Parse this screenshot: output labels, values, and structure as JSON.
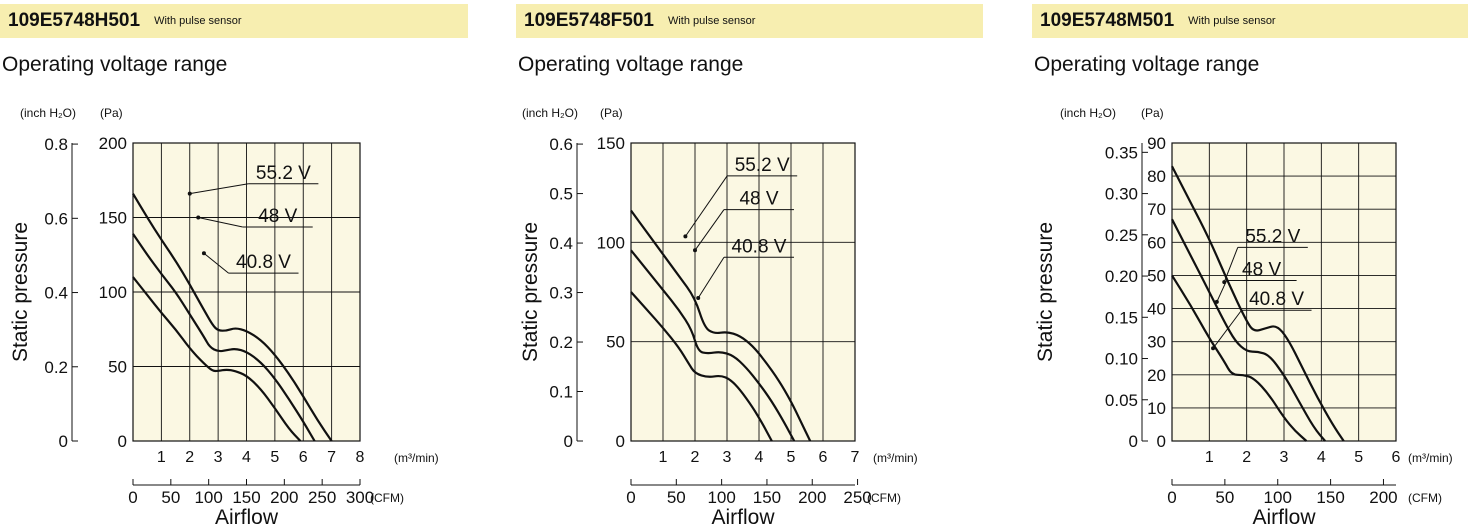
{
  "chart_data": [
    {
      "type": "line",
      "title": "109E5748H501",
      "subtitle": "With pulse sensor",
      "heading": "Operating voltage range",
      "xlabel": "Airflow",
      "ylabel": "Static pressure",
      "x_unit_primary": "(m³/min)",
      "x_unit_secondary": "(CFM)",
      "y_unit_primary": "(Pa)",
      "y_unit_secondary": "(inch H₂O)",
      "xlim": [
        0,
        8
      ],
      "ylim": [
        0,
        200
      ],
      "x_ticks": [
        "1",
        "2",
        "3",
        "4",
        "5",
        "6",
        "7",
        "8"
      ],
      "x_ticks_secondary": [
        "0",
        "50",
        "100",
        "150",
        "200",
        "250",
        "300"
      ],
      "y_ticks": [
        "0",
        "50",
        "100",
        "150",
        "200"
      ],
      "y_ticks_secondary": [
        "0",
        "0.2",
        "0.4",
        "0.6",
        "0.8"
      ],
      "grid": true,
      "series": [
        {
          "name": "55.2 V",
          "x": [
            0,
            0.5,
            1,
            1.5,
            2,
            2.5,
            2.8,
            3,
            3.3,
            3.6,
            4,
            4.5,
            5,
            5.5,
            6,
            6.5,
            7
          ],
          "y": [
            166,
            150,
            135,
            121,
            105,
            88,
            78,
            74,
            74,
            76,
            74,
            68,
            58,
            45,
            30,
            14,
            0
          ]
        },
        {
          "name": "48 V",
          "x": [
            0,
            0.5,
            1,
            1.5,
            2,
            2.5,
            2.7,
            3,
            3.3,
            3.6,
            4,
            4.5,
            5,
            5.5,
            6,
            6.4
          ],
          "y": [
            139,
            125,
            112,
            100,
            85,
            70,
            63,
            60,
            61,
            62,
            60,
            53,
            42,
            28,
            13,
            0
          ]
        },
        {
          "name": "40.8 V",
          "x": [
            0,
            0.5,
            1,
            1.5,
            2,
            2.5,
            2.8,
            3,
            3.3,
            3.6,
            4,
            4.5,
            5,
            5.5,
            5.9
          ],
          "y": [
            110,
            98,
            86,
            75,
            62,
            52,
            47,
            47,
            48,
            47,
            44,
            35,
            22,
            8,
            0
          ]
        }
      ]
    },
    {
      "type": "line",
      "title": "109E5748F501",
      "subtitle": "With pulse sensor",
      "heading": "Operating voltage range",
      "xlabel": "Airflow",
      "ylabel": "Static pressure",
      "x_unit_primary": "(m³/min)",
      "x_unit_secondary": "(CFM)",
      "y_unit_primary": "(Pa)",
      "y_unit_secondary": "(inch H₂O)",
      "xlim": [
        0,
        7
      ],
      "ylim": [
        0,
        150
      ],
      "x_ticks": [
        "1",
        "2",
        "3",
        "4",
        "5",
        "6",
        "7"
      ],
      "x_ticks_secondary": [
        "0",
        "50",
        "100",
        "150",
        "200",
        "250"
      ],
      "y_ticks": [
        "0",
        "50",
        "100",
        "150"
      ],
      "y_ticks_secondary": [
        "0",
        "0.1",
        "0.2",
        "0.3",
        "0.4",
        "0.5",
        "0.6"
      ],
      "grid": true,
      "series": [
        {
          "name": "55.2 V",
          "x": [
            0,
            0.5,
            1,
            1.5,
            2,
            2.3,
            2.6,
            3,
            3.4,
            3.8,
            4.2,
            4.6,
            5,
            5.3,
            5.6
          ],
          "y": [
            116,
            105,
            94,
            83,
            72,
            57,
            54,
            55,
            53,
            48,
            40,
            31,
            20,
            10,
            0
          ]
        },
        {
          "name": "48 V",
          "x": [
            0,
            0.5,
            1,
            1.5,
            1.9,
            2.1,
            2.4,
            2.8,
            3.2,
            3.6,
            4,
            4.4,
            4.8,
            5.1
          ],
          "y": [
            96,
            86,
            76,
            66,
            56,
            45,
            44,
            45,
            43,
            37,
            29,
            20,
            9,
            0
          ]
        },
        {
          "name": "40.8 V",
          "x": [
            0,
            0.5,
            1,
            1.5,
            1.8,
            2,
            2.4,
            2.8,
            3.1,
            3.4,
            3.8,
            4.1,
            4.4
          ],
          "y": [
            75,
            66,
            57,
            47,
            39,
            34,
            32,
            33,
            31,
            26,
            17,
            9,
            0
          ]
        }
      ]
    },
    {
      "type": "line",
      "title": "109E5748M501",
      "subtitle": "With pulse sensor",
      "heading": "Operating voltage range",
      "xlabel": "Airflow",
      "ylabel": "Static pressure",
      "x_unit_primary": "(m³/min)",
      "x_unit_secondary": "(CFM)",
      "y_unit_primary": "(Pa)",
      "y_unit_secondary": "(inch H₂O)",
      "xlim": [
        0,
        6
      ],
      "ylim": [
        0,
        90
      ],
      "x_ticks": [
        "1",
        "2",
        "3",
        "4",
        "5",
        "6"
      ],
      "x_ticks_secondary": [
        "0",
        "50",
        "100",
        "150",
        "200"
      ],
      "y_ticks": [
        "0",
        "10",
        "20",
        "30",
        "40",
        "50",
        "60",
        "70",
        "80",
        "90"
      ],
      "y_ticks_secondary": [
        "0",
        "0.05",
        "0.10",
        "0.15",
        "0.20",
        "0.25",
        "0.30",
        "0.35"
      ],
      "grid": true,
      "series": [
        {
          "name": "55.2 V",
          "x": [
            0,
            0.5,
            1,
            1.5,
            2,
            2.2,
            2.5,
            2.8,
            3.1,
            3.5,
            3.9,
            4.3,
            4.6
          ],
          "y": [
            83,
            72,
            61,
            48,
            36,
            33,
            34,
            35,
            31,
            22,
            13,
            5,
            0
          ]
        },
        {
          "name": "48 V",
          "x": [
            0,
            0.5,
            1,
            1.4,
            1.7,
            2,
            2.3,
            2.6,
            3,
            3.4,
            3.8,
            4.1
          ],
          "y": [
            67,
            56,
            45,
            36,
            30,
            27,
            27,
            26,
            20,
            12,
            4,
            0
          ]
        },
        {
          "name": "40.8 V",
          "x": [
            0,
            0.5,
            1,
            1.4,
            1.6,
            1.9,
            2.2,
            2.6,
            3,
            3.3,
            3.6
          ],
          "y": [
            50,
            41,
            31,
            24,
            20,
            20,
            19,
            14,
            7,
            3,
            0
          ]
        }
      ]
    }
  ]
}
